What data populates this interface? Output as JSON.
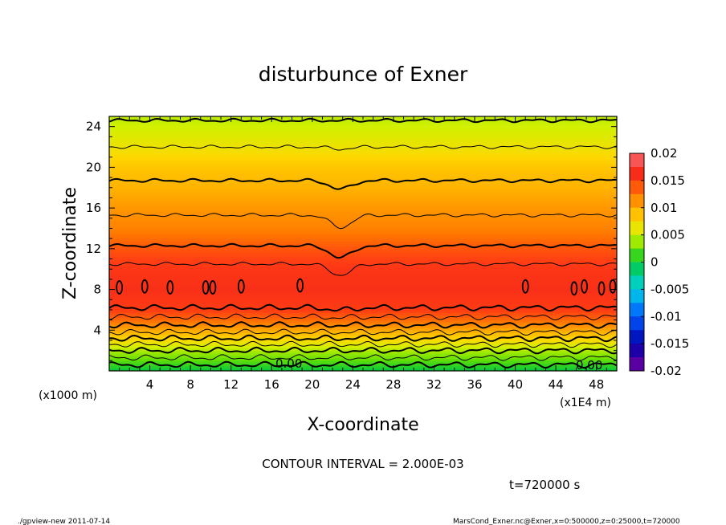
{
  "chart_data": {
    "type": "heatmap",
    "title": "disturbunce of Exner",
    "xlabel": "X-coordinate",
    "ylabel": "Z-coordinate",
    "x_unit": "(x1E4 m)",
    "y_unit": "(x1000 m)",
    "x_ticks": [
      4,
      8,
      12,
      16,
      20,
      24,
      28,
      32,
      36,
      40,
      44,
      48
    ],
    "y_ticks": [
      4,
      8,
      12,
      16,
      20,
      24
    ],
    "xlim": [
      0,
      50
    ],
    "ylim": [
      0,
      25
    ],
    "contour_interval_label": "CONTOUR INTERVAL = 2.000E-03",
    "time_label": "t=720000 s",
    "contour_labels": [
      "0.00",
      "0.00"
    ],
    "colorbar": {
      "ticks": [
        "0.02",
        "0.015",
        "0.01",
        "0.005",
        "0",
        "-0.005",
        "-0.01",
        "-0.015",
        "-0.02"
      ],
      "range": [
        -0.02,
        0.02
      ]
    },
    "vertical_profile": [
      {
        "z": 0,
        "value": 0.0
      },
      {
        "z": 1,
        "value": 0.002
      },
      {
        "z": 2,
        "value": 0.004
      },
      {
        "z": 3,
        "value": 0.007
      },
      {
        "z": 4,
        "value": 0.01
      },
      {
        "z": 5,
        "value": 0.013
      },
      {
        "z": 6,
        "value": 0.015
      },
      {
        "z": 8,
        "value": 0.016
      },
      {
        "z": 10,
        "value": 0.0155
      },
      {
        "z": 12,
        "value": 0.014
      },
      {
        "z": 14,
        "value": 0.012
      },
      {
        "z": 16,
        "value": 0.011
      },
      {
        "z": 18,
        "value": 0.0095
      },
      {
        "z": 20,
        "value": 0.0085
      },
      {
        "z": 22,
        "value": 0.0065
      },
      {
        "z": 24,
        "value": 0.005
      },
      {
        "z": 25,
        "value": 0.0045
      }
    ],
    "contour_levels_z": [
      0.6,
      1.3,
      2.0,
      2.6,
      3.2,
      3.8,
      4.5,
      5.3,
      6.2,
      10.5,
      12.3,
      15.3,
      18.7,
      22.0,
      24.6
    ],
    "closed_contours": [
      {
        "x": 1.0,
        "z": 8.2
      },
      {
        "x": 3.5,
        "z": 8.3
      },
      {
        "x": 6.0,
        "z": 8.2
      },
      {
        "x": 9.5,
        "z": 8.2
      },
      {
        "x": 10.2,
        "z": 8.2
      },
      {
        "x": 13.0,
        "z": 8.3
      },
      {
        "x": 18.8,
        "z": 8.4
      },
      {
        "x": 41.0,
        "z": 8.3
      },
      {
        "x": 45.8,
        "z": 8.1
      },
      {
        "x": 46.8,
        "z": 8.3
      },
      {
        "x": 48.5,
        "z": 8.1
      },
      {
        "x": 49.6,
        "z": 8.3
      }
    ]
  },
  "footer": {
    "left": "./gpview-new 2011-07-14",
    "right": "MarsCond_Exner.nc@Exner,x=0:500000,z=0:25000,t=720000"
  }
}
